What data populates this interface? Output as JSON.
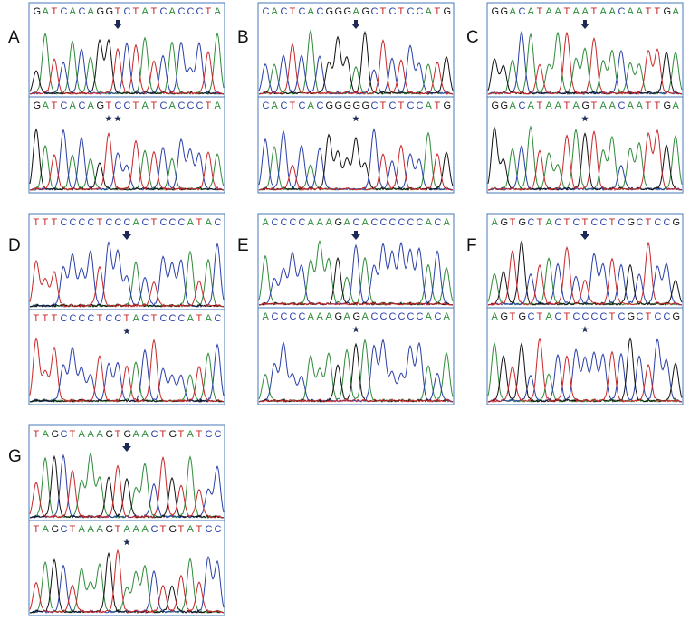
{
  "panels": [
    {
      "label": "A",
      "top": "GATCACAGGTCTATCACCCTA",
      "bottom": "GATCACAGTCCTATCACCCTA"
    },
    {
      "label": "B",
      "top": "CACTCACGGGAGCTCTCCATG",
      "bottom": "CACTCACGGGGGCTCTCCATG"
    },
    {
      "label": "C",
      "top": "GGACATAATAATAACAATTGA",
      "bottom": "GGACATAATAGTAACAATTGA"
    },
    {
      "label": "D",
      "top": "TTTCCCCTCCCACTCCCATAC",
      "bottom": "TTTCCCCTCCTACTCCCATAC"
    },
    {
      "label": "E",
      "top": "ACCCCAAAGACACCCCCCACA",
      "bottom": "ACCCCAAAGAGACCCCCCACA"
    },
    {
      "label": "F",
      "top": "AGTGCTACTCTCCTCGCTCCG",
      "bottom": "AGTGCTACTCCCCTCGCTCCG"
    },
    {
      "label": "G",
      "top": "TAGCTAAAGTGAACTGTATCC",
      "bottom": "TAGCTAAAGTAAACTGTATCC"
    }
  ]
}
